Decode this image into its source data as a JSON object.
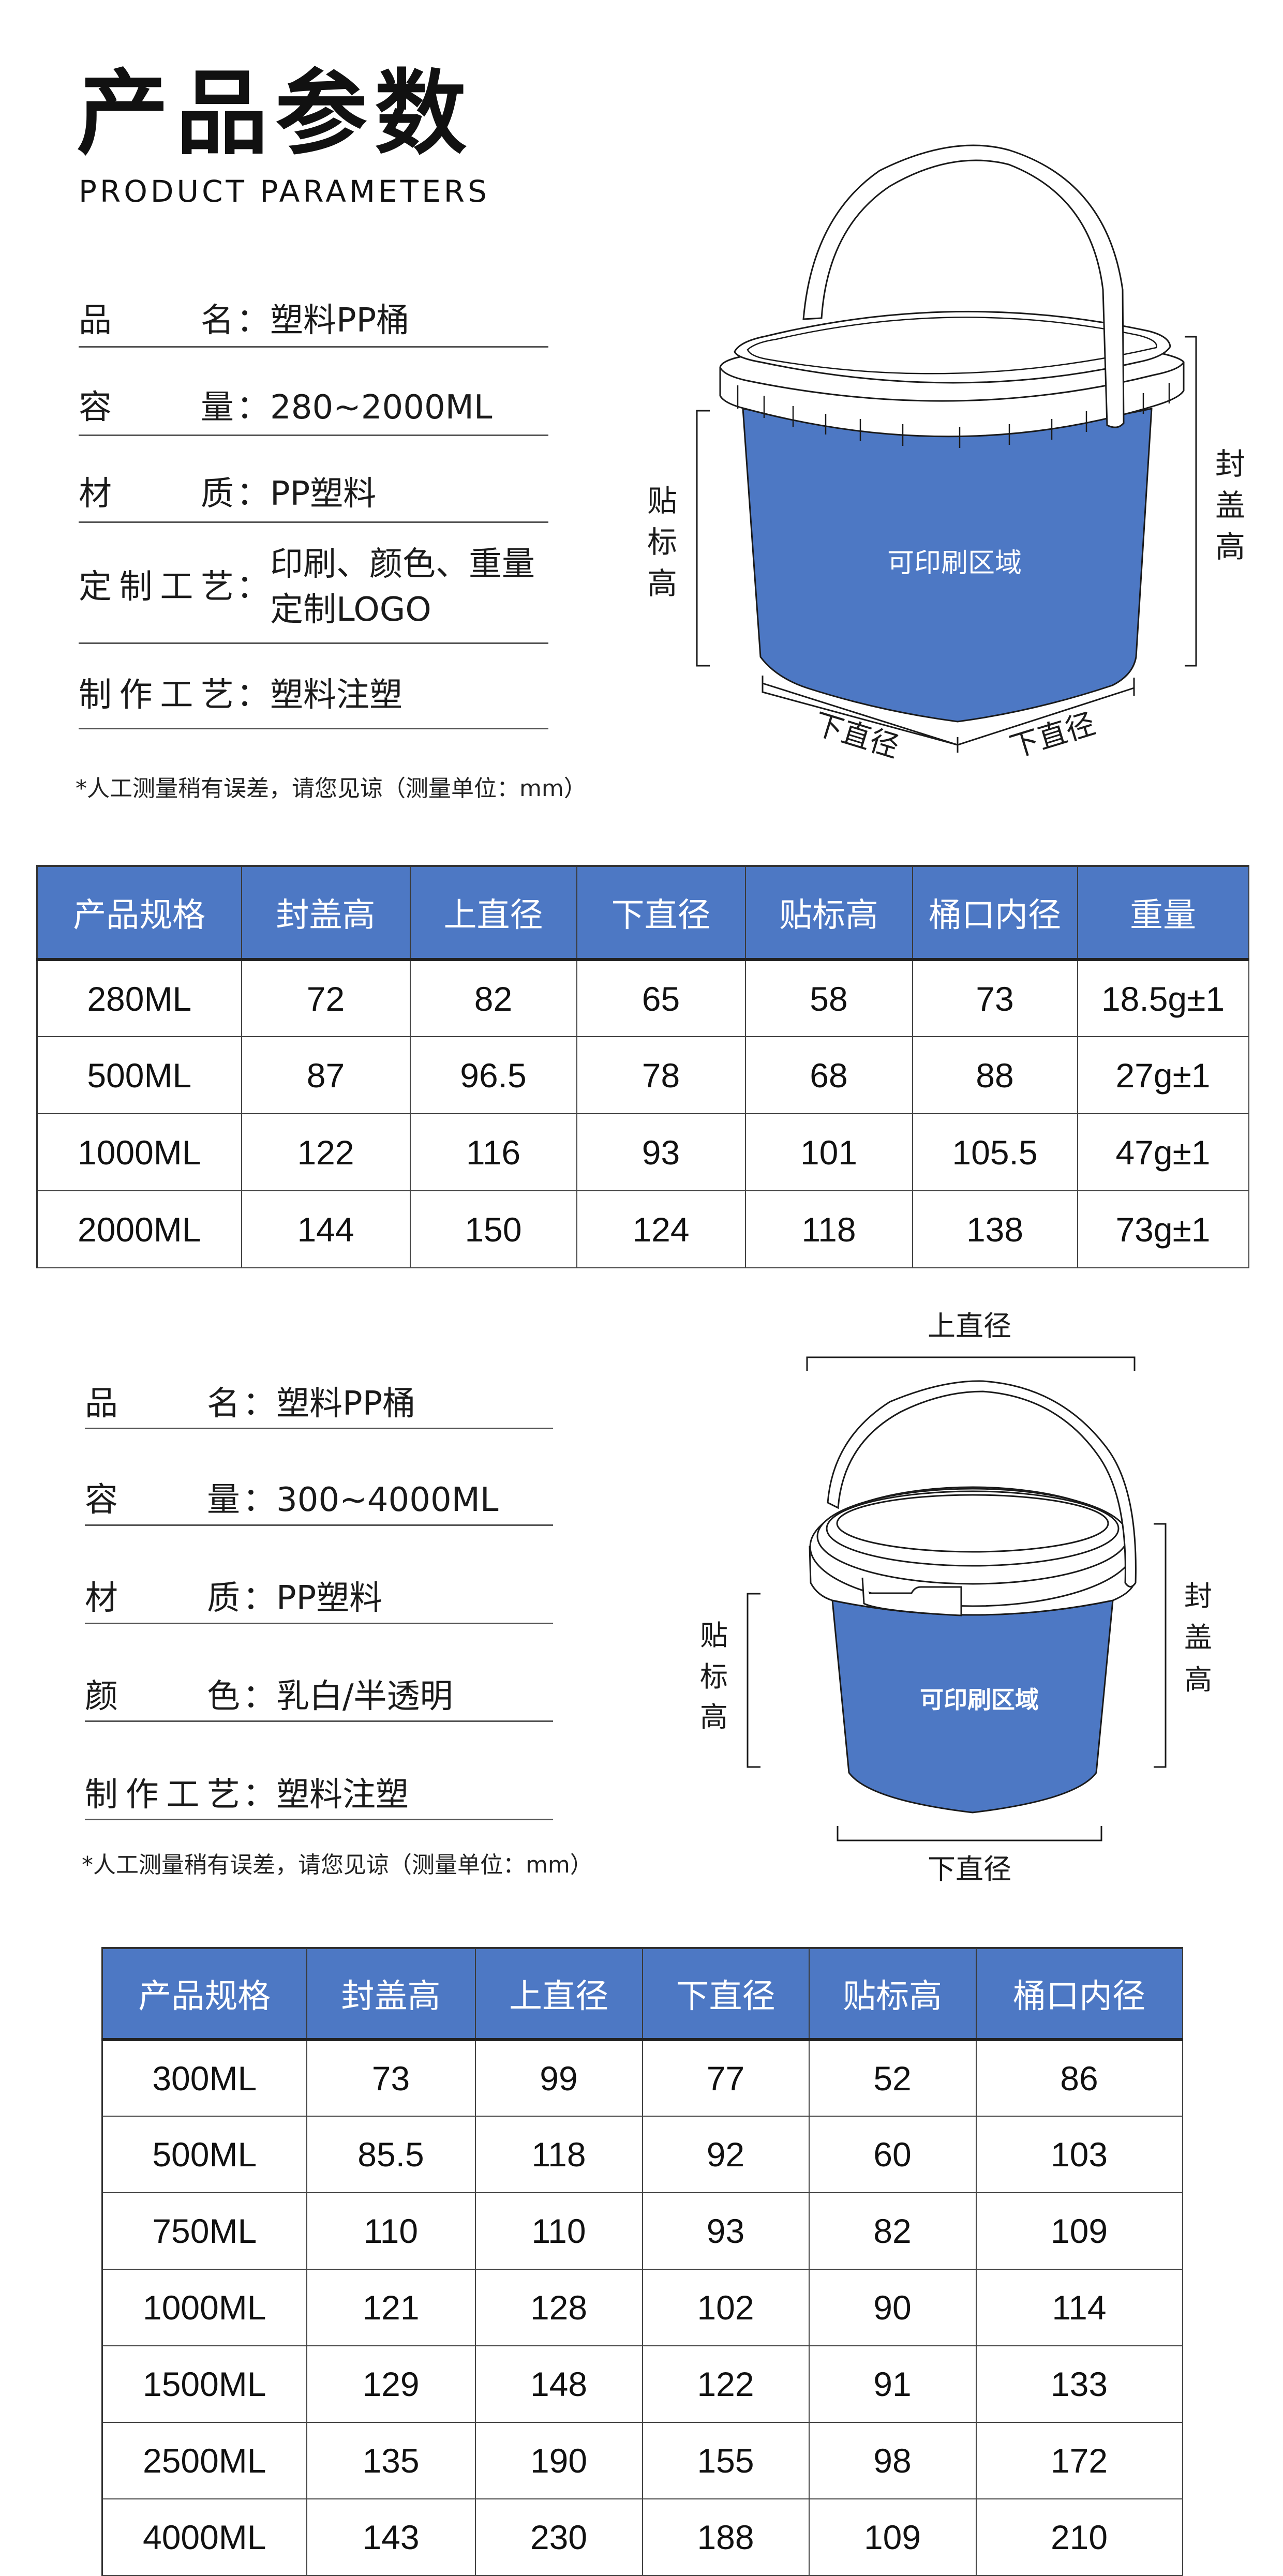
{
  "header": {
    "title": "产品参数",
    "subtitle": "PRODUCT PARAMETERS"
  },
  "colors": {
    "accent": "#4d78c4",
    "bucket_blue": "#4d78c4"
  },
  "section1": {
    "params": [
      {
        "label": "品名",
        "colon": "：",
        "value": "塑料PP桶"
      },
      {
        "label": "容量",
        "colon": "：",
        "value": "280~2000ML"
      },
      {
        "label": "材质",
        "colon": "：",
        "value": "PP塑料"
      },
      {
        "label": "定制工艺",
        "colon": "：",
        "value_lines": [
          "印刷、颜色、重量",
          "定制LOGO"
        ]
      },
      {
        "label": "制作工艺",
        "colon": "：",
        "value": "塑料注塑"
      }
    ],
    "note": "*人工测量稍有误差，请您见谅（测量单位：mm）",
    "diagram": {
      "label_height": "贴标高",
      "label_height_chars": [
        "贴",
        "标",
        "高"
      ],
      "cap_height_chars": [
        "封",
        "盖",
        "高"
      ],
      "bottom_diameter": "下直径",
      "print_area": "可印刷区域"
    },
    "table": {
      "headers": [
        "产品规格",
        "封盖高",
        "上直径",
        "下直径",
        "贴标高",
        "桶口内径",
        "重量"
      ],
      "rows": [
        [
          "280ML",
          "72",
          "82",
          "65",
          "58",
          "73",
          "18.5g±1"
        ],
        [
          "500ML",
          "87",
          "96.5",
          "78",
          "68",
          "88",
          "27g±1"
        ],
        [
          "1000ML",
          "122",
          "116",
          "93",
          "101",
          "105.5",
          "47g±1"
        ],
        [
          "2000ML",
          "144",
          "150",
          "124",
          "118",
          "138",
          "73g±1"
        ]
      ]
    }
  },
  "section2": {
    "params": [
      {
        "label": "品名",
        "colon": "：",
        "value": "塑料PP桶"
      },
      {
        "label": "容量",
        "colon": "：",
        "value": "300~4000ML"
      },
      {
        "label": "材质",
        "colon": "：",
        "value": "PP塑料"
      },
      {
        "label": "颜色",
        "colon": "：",
        "value": "乳白/半透明"
      },
      {
        "label": "制作工艺",
        "colon": "：",
        "value": "塑料注塑"
      }
    ],
    "note": "*人工测量稍有误差，请您见谅（测量单位：mm）",
    "diagram": {
      "top_diameter": "上直径",
      "label_height_chars": [
        "贴",
        "标",
        "高"
      ],
      "cap_height_chars": [
        "封",
        "盖",
        "高"
      ],
      "bottom_diameter": "下直径",
      "print_area": "可印刷区域"
    },
    "table": {
      "headers": [
        "产品规格",
        "封盖高",
        "上直径",
        "下直径",
        "贴标高",
        "桶口内径"
      ],
      "rows": [
        [
          "300ML",
          "73",
          "99",
          "77",
          "52",
          "86"
        ],
        [
          "500ML",
          "85.5",
          "118",
          "92",
          "60",
          "103"
        ],
        [
          "750ML",
          "110",
          "110",
          "93",
          "82",
          "109"
        ],
        [
          "1000ML",
          "121",
          "128",
          "102",
          "90",
          "114"
        ],
        [
          "1500ML",
          "129",
          "148",
          "122",
          "91",
          "133"
        ],
        [
          "2500ML",
          "135",
          "190",
          "155",
          "98",
          "172"
        ],
        [
          "4000ML",
          "143",
          "230",
          "188",
          "109",
          "210"
        ]
      ]
    }
  }
}
